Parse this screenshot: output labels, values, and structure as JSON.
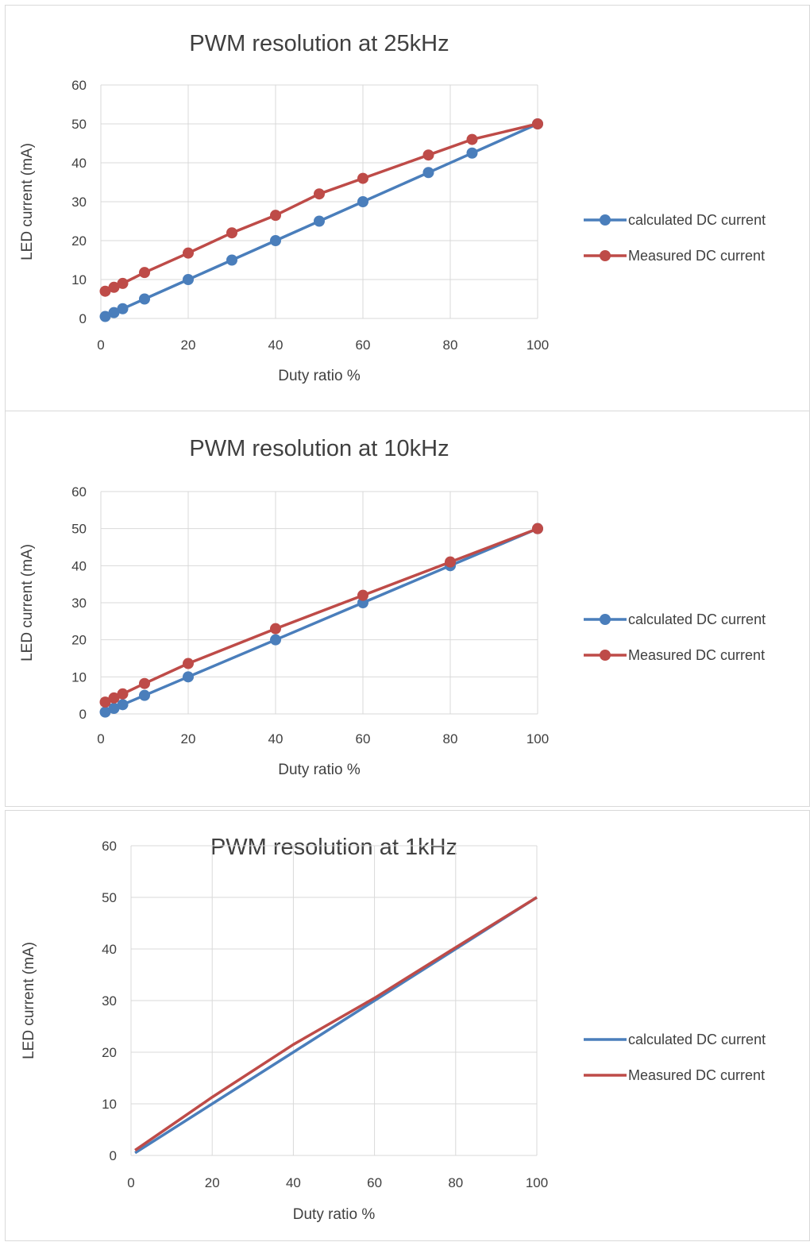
{
  "colors": {
    "calculated": "#4A7EBB",
    "measured": "#BE4B48",
    "grid": "#D9D9D9",
    "text": "#404040"
  },
  "chart_data": [
    {
      "type": "line",
      "markers": true,
      "title": "PWM resolution at 25kHz",
      "xlabel": "Duty ratio %",
      "ylabel": "LED current (mA)",
      "xlim": [
        0,
        100
      ],
      "ylim": [
        0,
        60
      ],
      "xticks": [
        0,
        20,
        40,
        60,
        80,
        100
      ],
      "yticks": [
        0,
        10,
        20,
        30,
        40,
        50,
        60
      ],
      "grid": true,
      "legend": "right",
      "series": [
        {
          "name": "calculated DC current",
          "color": "#4A7EBB",
          "points": [
            [
              1,
              0.5
            ],
            [
              3,
              1.5
            ],
            [
              5,
              2.5
            ],
            [
              10,
              5
            ],
            [
              20,
              10
            ],
            [
              30,
              15
            ],
            [
              40,
              20
            ],
            [
              50,
              25
            ],
            [
              60,
              30
            ],
            [
              75,
              37.5
            ],
            [
              85,
              42.5
            ],
            [
              100,
              50
            ]
          ]
        },
        {
          "name": "Measured DC current",
          "color": "#BE4B48",
          "points": [
            [
              1,
              7
            ],
            [
              3,
              8
            ],
            [
              5,
              9
            ],
            [
              10,
              11.8
            ],
            [
              20,
              16.8
            ],
            [
              30,
              22
            ],
            [
              40,
              26.5
            ],
            [
              50,
              32
            ],
            [
              60,
              36
            ],
            [
              75,
              42
            ],
            [
              85,
              46
            ],
            [
              100,
              50
            ]
          ]
        }
      ]
    },
    {
      "type": "line",
      "markers": true,
      "title": "PWM resolution at 10kHz",
      "xlabel": "Duty ratio %",
      "ylabel": "LED current (mA)",
      "xlim": [
        0,
        100
      ],
      "ylim": [
        0,
        60
      ],
      "xticks": [
        0,
        20,
        40,
        60,
        80,
        100
      ],
      "yticks": [
        0,
        10,
        20,
        30,
        40,
        50,
        60
      ],
      "grid": true,
      "legend": "right",
      "series": [
        {
          "name": "calculated DC current",
          "color": "#4A7EBB",
          "points": [
            [
              1,
              0.5
            ],
            [
              3,
              1.5
            ],
            [
              5,
              2.5
            ],
            [
              10,
              5
            ],
            [
              20,
              10
            ],
            [
              40,
              20
            ],
            [
              60,
              30
            ],
            [
              80,
              40
            ],
            [
              100,
              50
            ]
          ]
        },
        {
          "name": "Measured DC current",
          "color": "#BE4B48",
          "points": [
            [
              1,
              3.2
            ],
            [
              3,
              4.3
            ],
            [
              5,
              5.4
            ],
            [
              10,
              8.2
            ],
            [
              20,
              13.6
            ],
            [
              40,
              23
            ],
            [
              60,
              32
            ],
            [
              80,
              41
            ],
            [
              100,
              50
            ]
          ]
        }
      ]
    },
    {
      "type": "line",
      "markers": false,
      "title": "PWM resolution at 1kHz",
      "xlabel": "Duty ratio %",
      "ylabel": "LED current (mA)",
      "xlim": [
        0,
        100
      ],
      "ylim": [
        0,
        60
      ],
      "xticks": [
        0,
        20,
        40,
        60,
        80,
        100
      ],
      "yticks": [
        0,
        10,
        20,
        30,
        40,
        50,
        60
      ],
      "grid": true,
      "legend": "right",
      "series": [
        {
          "name": "calculated DC current",
          "color": "#4A7EBB",
          "points": [
            [
              1,
              0.5
            ],
            [
              20,
              10
            ],
            [
              40,
              20
            ],
            [
              60,
              30
            ],
            [
              80,
              40
            ],
            [
              100,
              50
            ]
          ]
        },
        {
          "name": "Measured DC current",
          "color": "#BE4B48",
          "points": [
            [
              1,
              1
            ],
            [
              20,
              11.3
            ],
            [
              40,
              21.5
            ],
            [
              60,
              30.5
            ],
            [
              80,
              40.3
            ],
            [
              100,
              50
            ]
          ]
        }
      ]
    }
  ]
}
